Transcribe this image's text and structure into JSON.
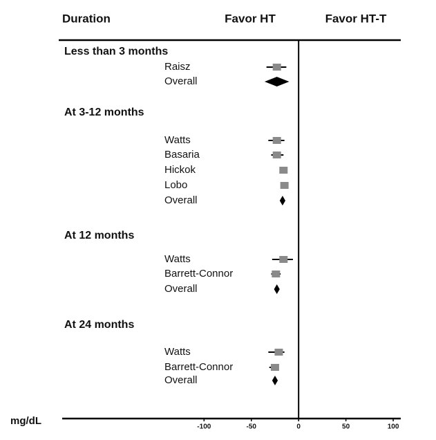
{
  "chart_data": {
    "type": "forest",
    "headers": [
      "Duration",
      "Favor HT",
      "Favor HT-T"
    ],
    "x_label": "mg/dL",
    "xlim": [
      -250,
      108
    ],
    "xticks": [
      -100,
      -50,
      0,
      50,
      100
    ],
    "box_color": "#8a8a8a",
    "line_color": "#000000",
    "groups": [
      {
        "name": "Less than 3 months",
        "studies": [
          {
            "name": "Raisz",
            "shape": "square",
            "estimate": -23,
            "lower": -34,
            "upper": -13
          },
          {
            "name": "Overall",
            "shape": "diamond",
            "estimate": -23,
            "lower": -36,
            "upper": -10
          }
        ]
      },
      {
        "name": "At 3-12 months",
        "studies": [
          {
            "name": "Watts",
            "shape": "square",
            "estimate": -23,
            "lower": -32,
            "upper": -15
          },
          {
            "name": "Basaria",
            "shape": "square",
            "estimate": -23,
            "lower": -29,
            "upper": -16
          },
          {
            "name": "Hickok",
            "shape": "square",
            "estimate": -16,
            "lower": -20,
            "upper": -12
          },
          {
            "name": "Lobo",
            "shape": "square",
            "estimate": -15,
            "lower": -19,
            "upper": -12
          },
          {
            "name": "Overall",
            "shape": "diamond",
            "estimate": -17,
            "lower": -20,
            "upper": -14
          }
        ]
      },
      {
        "name": "At 12 months",
        "studies": [
          {
            "name": "Watts",
            "shape": "square",
            "estimate": -16,
            "lower": -28,
            "upper": -6
          },
          {
            "name": "Barrett-Connor",
            "shape": "square",
            "estimate": -24,
            "lower": -29,
            "upper": -19
          },
          {
            "name": "Overall",
            "shape": "diamond",
            "estimate": -23,
            "lower": -26,
            "upper": -20
          }
        ]
      },
      {
        "name": "At 24 months",
        "studies": [
          {
            "name": "Watts",
            "shape": "square",
            "estimate": -21,
            "lower": -32,
            "upper": -15
          },
          {
            "name": "Barrett-Connor",
            "shape": "square",
            "estimate": -25,
            "lower": -31,
            "upper": -21
          },
          {
            "name": "Overall",
            "shape": "diamond",
            "estimate": -25,
            "lower": -28,
            "upper": -22
          }
        ]
      }
    ]
  }
}
